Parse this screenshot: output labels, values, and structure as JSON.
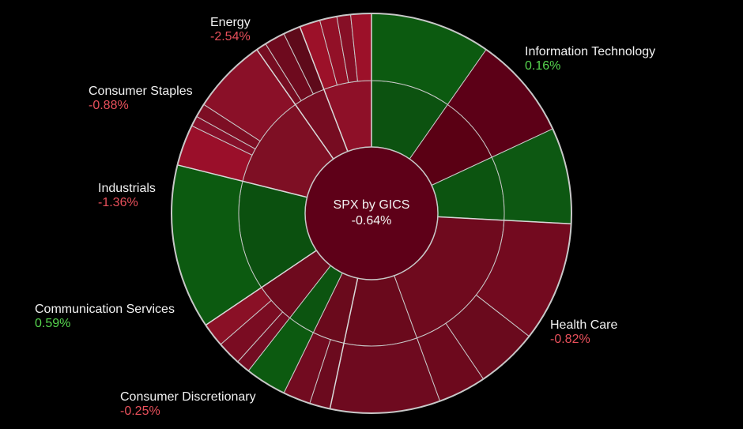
{
  "chart_data": {
    "type": "sunburst",
    "center": {
      "title": "SPX by GICS",
      "value": "-0.64%"
    },
    "sectors": [
      {
        "name": "Information Technology",
        "change": "0.16%",
        "sign": "pos",
        "color": "#0d5a12",
        "industries": [
          {
            "color": "#0c5210",
            "subs": [
              {
                "color": "#0c5a10"
              }
            ]
          },
          {
            "color": "#5a0014",
            "subs": [
              {
                "color": "#5c0017"
              }
            ]
          },
          {
            "color": "#0c5410",
            "subs": [
              {
                "color": "#0d5812"
              }
            ]
          }
        ]
      },
      {
        "name": "Health Care",
        "change": "-0.82%",
        "sign": "neg",
        "color": "#6e0a1f",
        "industries": [
          {
            "color": "#6f0a1e",
            "subs": [
              {
                "color": "#730a1f"
              },
              {
                "color": "#6a0a1d"
              },
              {
                "color": "#6d091d"
              }
            ]
          },
          {
            "color": "#6a091c",
            "subs": [
              {
                "color": "#6e0a1f"
              }
            ]
          }
        ]
      },
      {
        "name": "Consumer Discretionary",
        "change": "-0.25%",
        "sign": "neg",
        "color": "#5e0018",
        "industries": [
          {
            "color": "#6a0a1c",
            "subs": [
              {
                "color": "#6b0a1e"
              },
              {
                "color": "#720b20"
              }
            ]
          },
          {
            "color": "#0c5410",
            "subs": [
              {
                "color": "#0c5a10"
              }
            ]
          },
          {
            "color": "#6e0a1e",
            "subs": [
              {
                "color": "#730c22"
              },
              {
                "color": "#7a0c22"
              },
              {
                "color": "#8a1026"
              }
            ]
          }
        ]
      },
      {
        "name": "Communication Services",
        "change": "0.59%",
        "sign": "pos",
        "color": "#0b4f0e",
        "industries": [
          {
            "color": "#0b500f",
            "subs": [
              {
                "color": "#0c5a10"
              }
            ]
          }
        ]
      },
      {
        "name": "Industrials",
        "change": "-1.36%",
        "sign": "neg",
        "color": "#7a0d22",
        "industries": [
          {
            "color": "#7e0f24",
            "subs": [
              {
                "color": "#9a0f2a"
              },
              {
                "color": "#86102a"
              },
              {
                "color": "#7d0e24"
              },
              {
                "color": "#8a1028"
              }
            ]
          }
        ]
      },
      {
        "name": "Consumer Staples",
        "change": "-0.88%",
        "sign": "neg",
        "color": "#720b1f",
        "industries": [
          {
            "color": "#760c21",
            "subs": [
              {
                "color": "#760c21"
              },
              {
                "color": "#6e0a1e"
              },
              {
                "color": "#5e0a1a"
              }
            ]
          }
        ]
      },
      {
        "name": "Energy",
        "change": "-2.54%",
        "sign": "neg",
        "color": "#8c1027",
        "industries": [
          {
            "color": "#8e1028",
            "subs": [
              {
                "color": "#9c1129"
              },
              {
                "color": "#921027"
              },
              {
                "color": "#860f26"
              },
              {
                "color": "#9c1129"
              }
            ]
          }
        ]
      }
    ]
  }
}
